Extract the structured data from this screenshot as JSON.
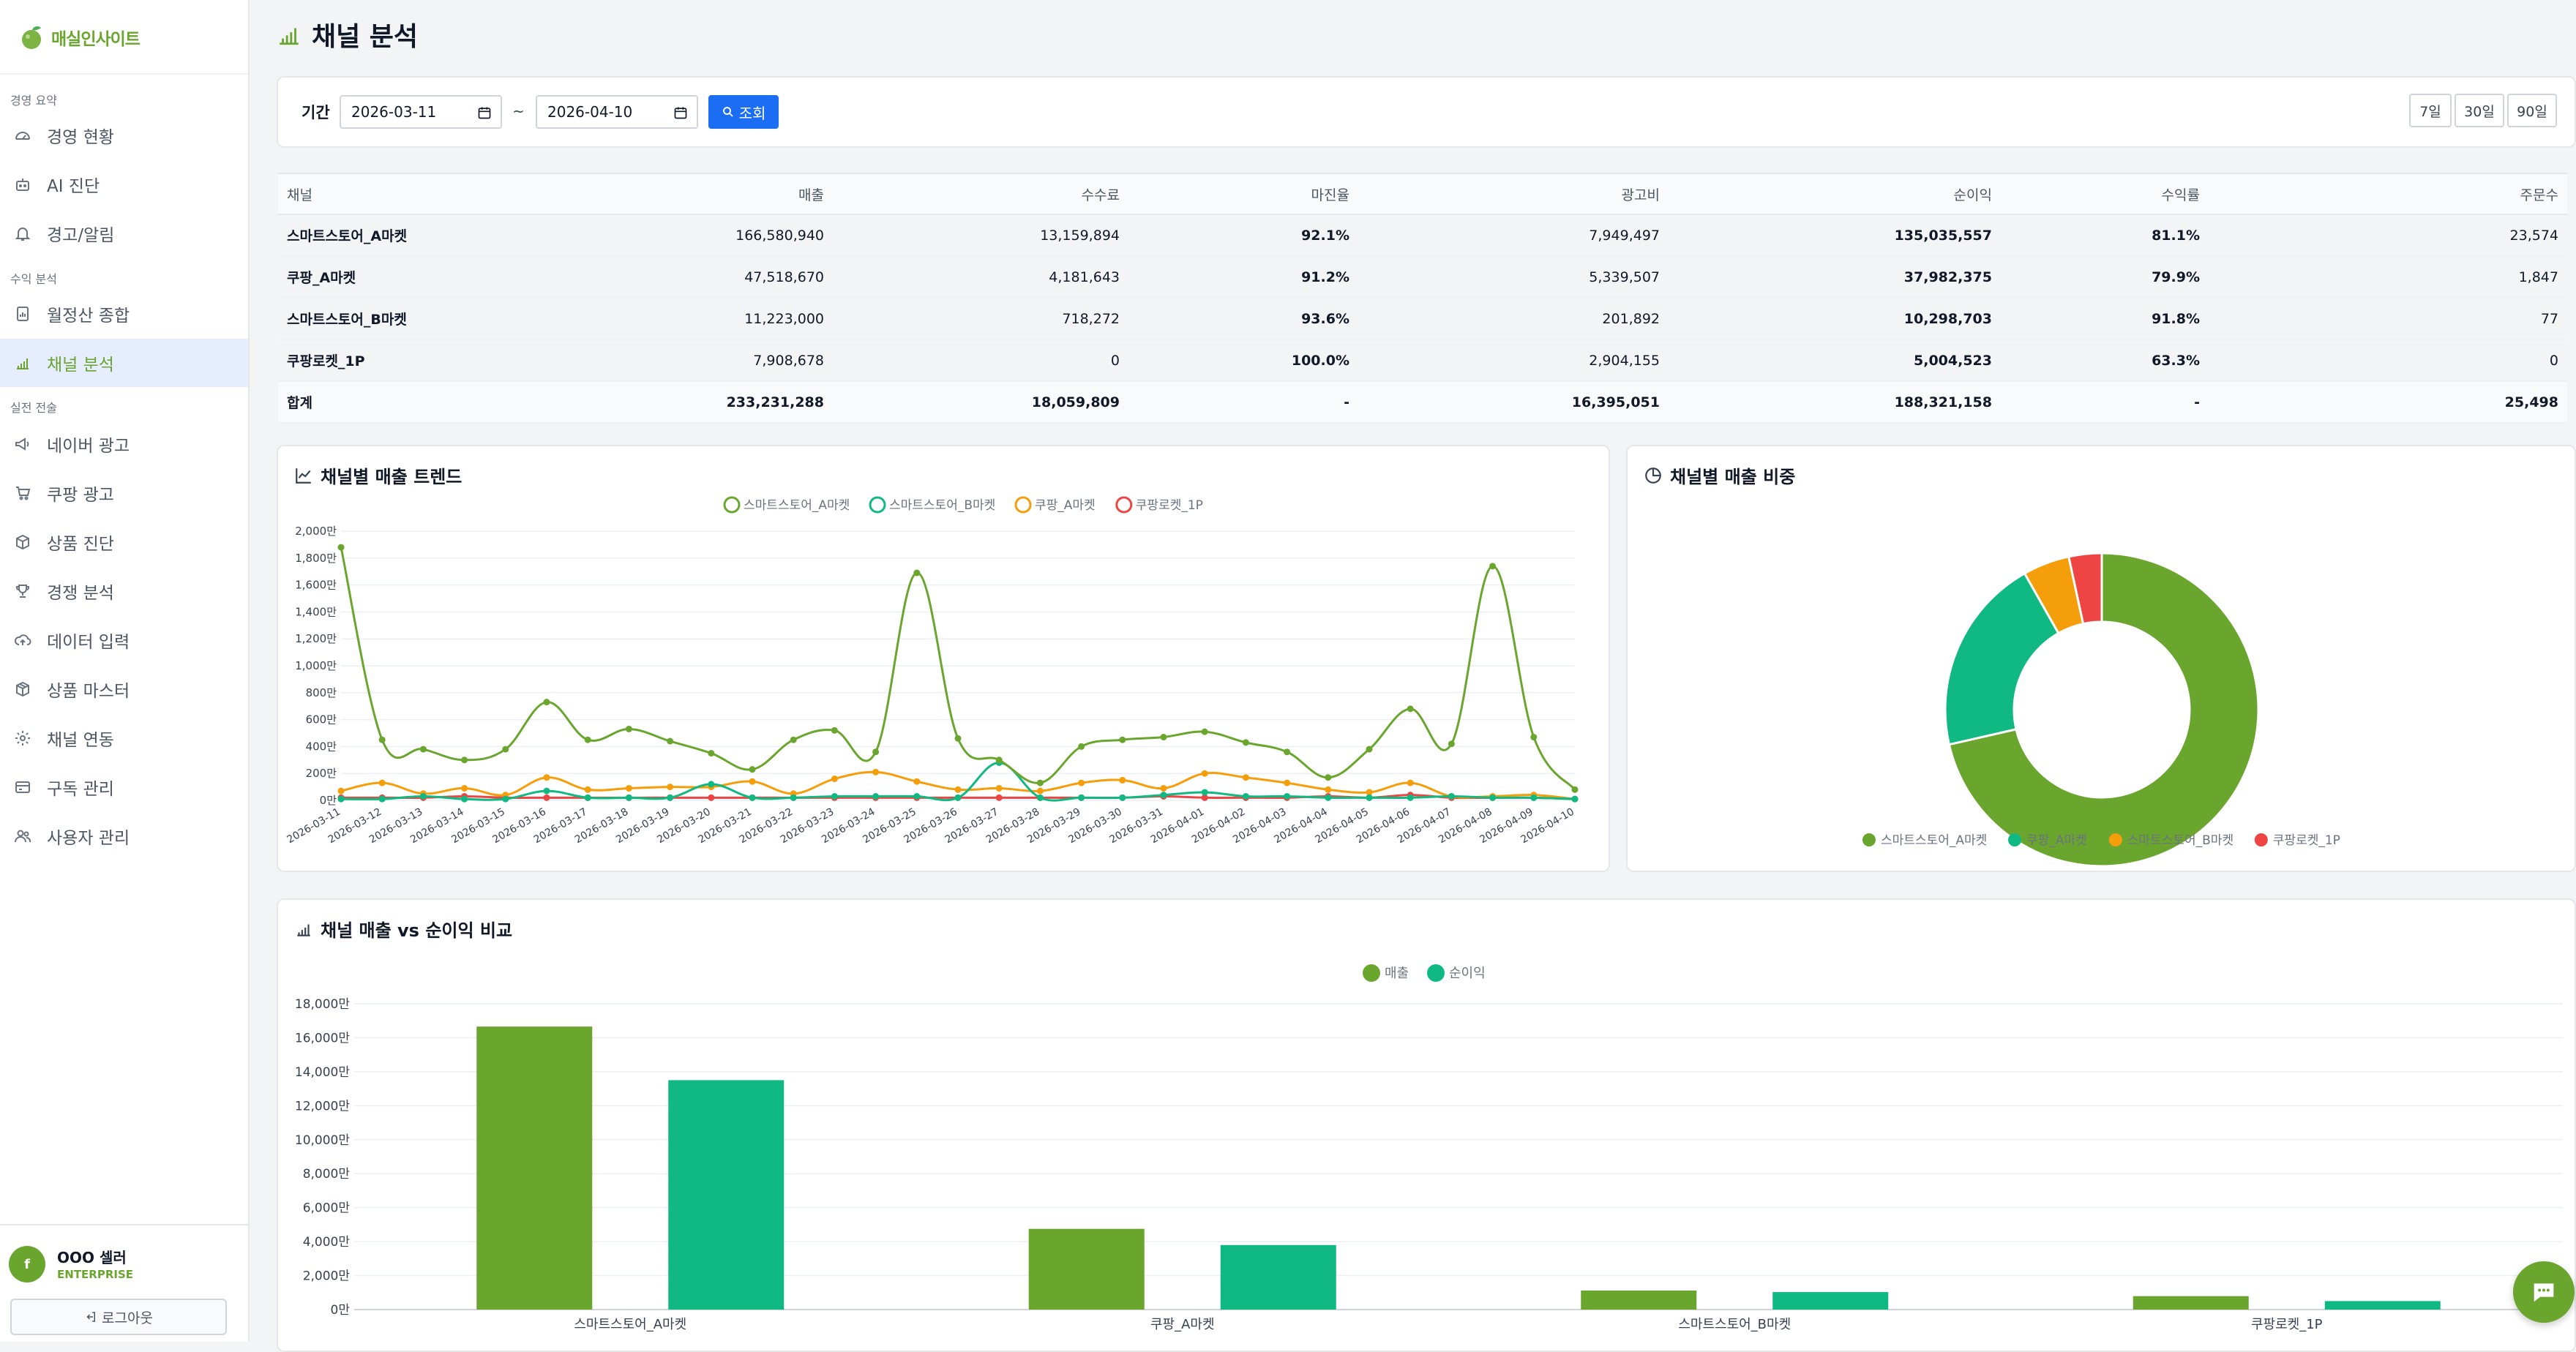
{
  "app": {
    "name": "매실인사이트"
  },
  "sidebar": {
    "sections": [
      {
        "title": "경영 요약",
        "items": [
          {
            "label": "경영 현황",
            "icon": "dashboard-gauge-icon"
          },
          {
            "label": "AI 진단",
            "icon": "robot-icon"
          },
          {
            "label": "경고/알림",
            "icon": "bell-icon"
          }
        ]
      },
      {
        "title": "수익 분석",
        "items": [
          {
            "label": "월정산 종합",
            "icon": "report-icon"
          },
          {
            "label": "채널 분석",
            "icon": "bar-chart-icon",
            "active": true
          }
        ]
      },
      {
        "title": "실전 전술",
        "items": [
          {
            "label": "네이버 광고",
            "icon": "megaphone-icon"
          },
          {
            "label": "쿠팡 광고",
            "icon": "cart-icon"
          },
          {
            "label": "상품 진단",
            "icon": "box-icon"
          },
          {
            "label": "경쟁 분석",
            "icon": "trophy-icon"
          },
          {
            "label": "데이터 입력",
            "icon": "cloud-upload-icon"
          },
          {
            "label": "상품 마스터",
            "icon": "package-icon"
          },
          {
            "label": "채널 연동",
            "icon": "settings-icon"
          },
          {
            "label": "구독 관리",
            "icon": "credit-card-icon"
          },
          {
            "label": "사용자 관리",
            "icon": "users-icon"
          }
        ]
      }
    ],
    "user": {
      "avatar_letter": "f",
      "name": "OOO 셀러",
      "plan": "ENTERPRISE"
    },
    "logout_label": "로그아웃"
  },
  "page": {
    "title": "채널 분석"
  },
  "filter": {
    "label": "기간",
    "start_date": "2026-03-11",
    "end_date": "2026-04-10",
    "separator": "~",
    "query_label": "조회",
    "periods": [
      "7일",
      "30일",
      "90일"
    ]
  },
  "table": {
    "columns": [
      "채널",
      "매출",
      "수수료",
      "마진율",
      "광고비",
      "순이익",
      "수익률",
      "주문수"
    ],
    "rows": [
      [
        "스마트스토어_A마켓",
        "166,580,940",
        "13,159,894",
        "92.1%",
        "7,949,497",
        "135,035,557",
        "81.1%",
        "23,574"
      ],
      [
        "쿠팡_A마켓",
        "47,518,670",
        "4,181,643",
        "91.2%",
        "5,339,507",
        "37,982,375",
        "79.9%",
        "1,847"
      ],
      [
        "스마트스토어_B마켓",
        "11,223,000",
        "718,272",
        "93.6%",
        "201,892",
        "10,298,703",
        "91.8%",
        "77"
      ],
      [
        "쿠팡로켓_1P",
        "7,908,678",
        "0",
        "100.0%",
        "2,904,155",
        "5,004,523",
        "63.3%",
        "0"
      ]
    ],
    "total": [
      "합계",
      "233,231,288",
      "18,059,809",
      "-",
      "16,395,051",
      "188,321,158",
      "-",
      "25,498"
    ]
  },
  "colors": {
    "green": "#6aa62e",
    "teal": "#10b981",
    "orange": "#f59e0b",
    "red": "#ef4444",
    "blue": "#1b6ef3"
  },
  "chart_data": [
    {
      "id": "trend",
      "type": "line",
      "title": "채널별 매출 트렌드",
      "x": [
        "2026-03-11",
        "2026-03-12",
        "2026-03-13",
        "2026-03-14",
        "2026-03-15",
        "2026-03-16",
        "2026-03-17",
        "2026-03-18",
        "2026-03-19",
        "2026-03-20",
        "2026-03-21",
        "2026-03-22",
        "2026-03-23",
        "2026-03-24",
        "2026-03-25",
        "2026-03-26",
        "2026-03-27",
        "2026-03-28",
        "2026-03-29",
        "2026-03-30",
        "2026-03-31",
        "2026-04-01",
        "2026-04-02",
        "2026-04-03",
        "2026-04-04",
        "2026-04-05",
        "2026-04-06",
        "2026-04-07",
        "2026-04-08",
        "2026-04-09",
        "2026-04-10"
      ],
      "y_ticks": [
        "0만",
        "200만",
        "400만",
        "600만",
        "800만",
        "1,000만",
        "1,200만",
        "1,400만",
        "1,600만",
        "1,800만",
        "2,000만"
      ],
      "ylim": [
        0,
        2000
      ],
      "legend": [
        "스마트스토어_A마켓",
        "스마트스토어_B마켓",
        "쿠팡_A마켓",
        "쿠팡로켓_1P"
      ],
      "series": [
        {
          "name": "스마트스토어_A마켓",
          "color": "#6aa62e",
          "values": [
            1880,
            450,
            380,
            300,
            380,
            730,
            450,
            530,
            440,
            350,
            230,
            450,
            520,
            360,
            1690,
            460,
            300,
            130,
            400,
            450,
            470,
            510,
            430,
            360,
            170,
            380,
            680,
            420,
            1740,
            470,
            80
          ]
        },
        {
          "name": "스마트스토어_B마켓",
          "color": "#10b981",
          "values": [
            10,
            10,
            30,
            10,
            10,
            70,
            20,
            20,
            20,
            120,
            20,
            20,
            30,
            30,
            30,
            20,
            280,
            20,
            20,
            20,
            40,
            60,
            30,
            30,
            20,
            20,
            20,
            30,
            20,
            20,
            10
          ]
        },
        {
          "name": "쿠팡_A마켓",
          "color": "#f59e0b",
          "values": [
            70,
            130,
            50,
            90,
            40,
            170,
            80,
            90,
            100,
            100,
            140,
            50,
            160,
            210,
            140,
            80,
            90,
            70,
            130,
            150,
            90,
            200,
            170,
            130,
            80,
            60,
            130,
            30,
            30,
            40,
            10
          ]
        },
        {
          "name": "쿠팡로켓_1P",
          "color": "#ef4444",
          "values": [
            20,
            20,
            20,
            30,
            20,
            20,
            20,
            20,
            20,
            20,
            20,
            20,
            20,
            20,
            20,
            20,
            20,
            20,
            20,
            20,
            30,
            20,
            20,
            20,
            30,
            20,
            40,
            20,
            20,
            20,
            10
          ]
        }
      ]
    },
    {
      "id": "share",
      "type": "pie",
      "title": "채널별 매출 비중",
      "labels": [
        "스마트스토어_A마켓",
        "쿠팡_A마켓",
        "스마트스토어_B마켓",
        "쿠팡로켓_1P"
      ],
      "values": [
        166580940,
        47518670,
        11223000,
        7908678
      ],
      "colors": [
        "#6aa62e",
        "#10b981",
        "#f59e0b",
        "#ef4444"
      ]
    },
    {
      "id": "compare",
      "type": "bar",
      "title": "채널 매출 vs 순이익 비교",
      "categories": [
        "스마트스토어_A마켓",
        "쿠팡_A마켓",
        "스마트스토어_B마켓",
        "쿠팡로켓_1P"
      ],
      "y_ticks": [
        "0만",
        "2,000만",
        "4,000만",
        "6,000만",
        "8,000만",
        "10,000만",
        "12,000만",
        "14,000만",
        "16,000만",
        "18,000만"
      ],
      "ylim": [
        0,
        18000
      ],
      "series": [
        {
          "name": "매출",
          "color": "#6aa62e",
          "values": [
            16658,
            4752,
            1122,
            791
          ]
        },
        {
          "name": "순이익",
          "color": "#10b981",
          "values": [
            13504,
            3798,
            1030,
            500
          ]
        }
      ]
    }
  ]
}
